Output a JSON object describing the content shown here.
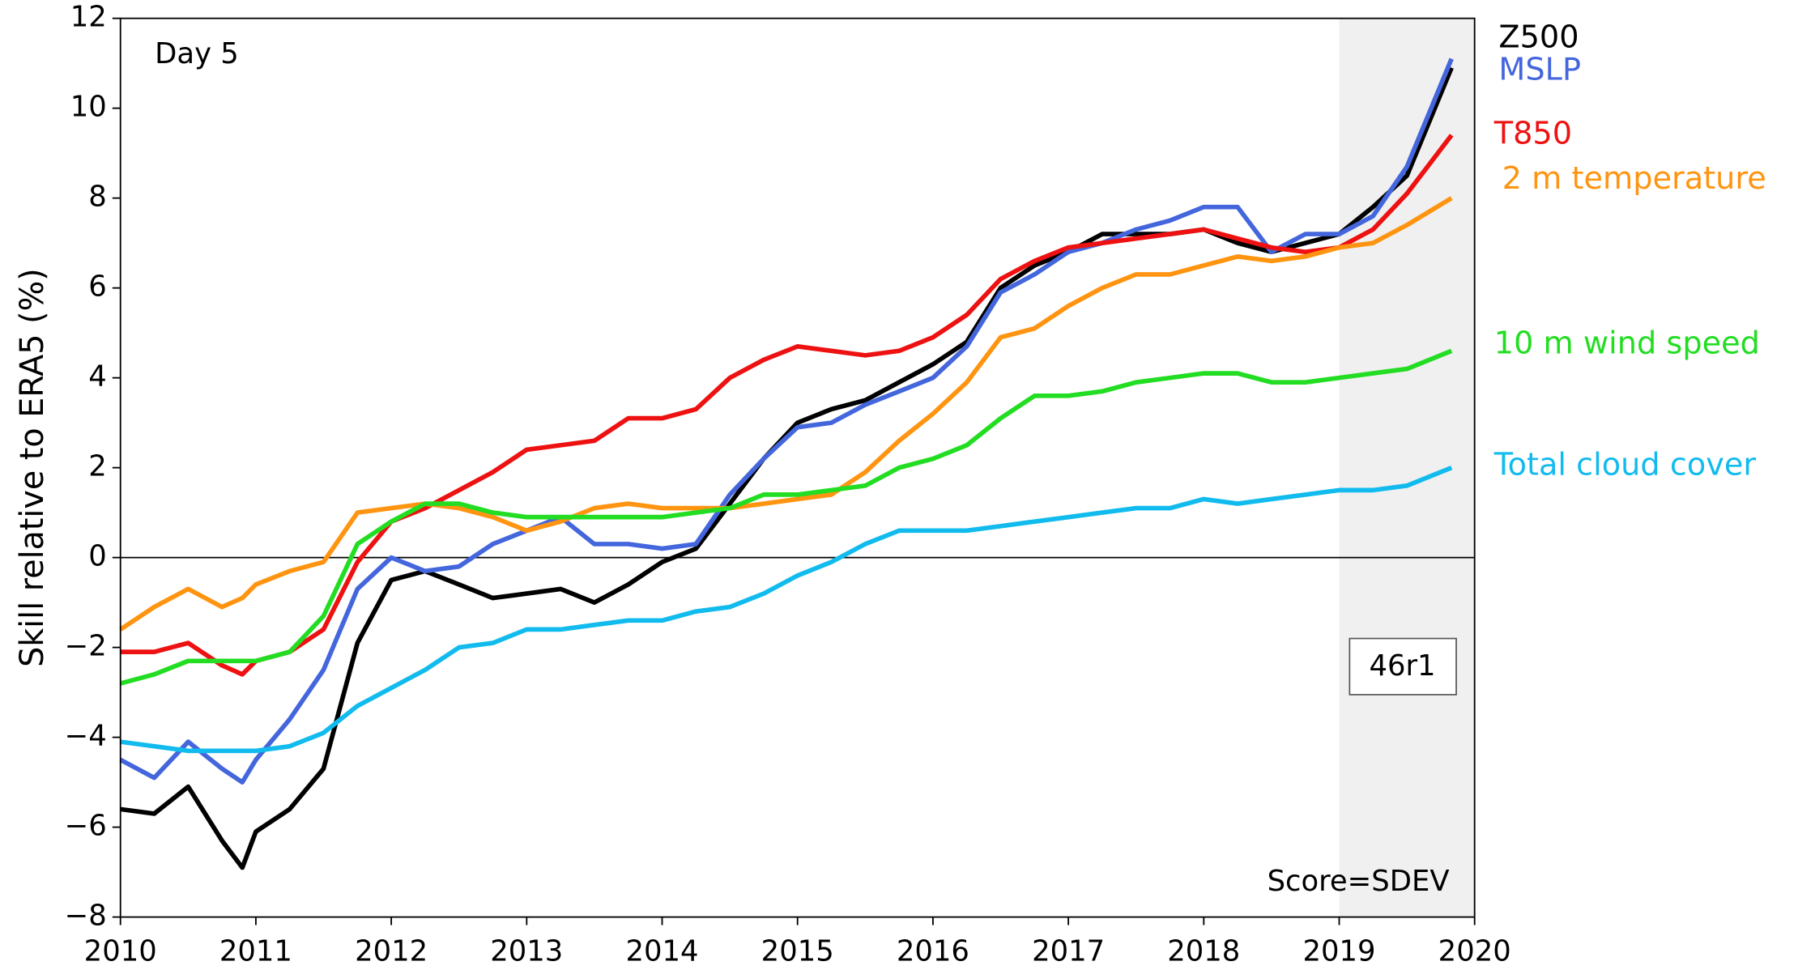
{
  "chart_data": {
    "type": "line",
    "ylabel": "Skill relative to ERA5 (%)",
    "annotations": [
      "Day 5",
      "Score=SDEV",
      "46r1"
    ],
    "xlim": [
      2010,
      2020
    ],
    "ylim": [
      -8,
      12
    ],
    "xticks": [
      2010,
      2011,
      2012,
      2013,
      2014,
      2015,
      2016,
      2017,
      2018,
      2019,
      2020
    ],
    "yticks": [
      {
        "value": -8,
        "label": "−8"
      },
      {
        "value": -6,
        "label": "−6"
      },
      {
        "value": -4,
        "label": "−4"
      },
      {
        "value": -2,
        "label": "−2"
      },
      0,
      2,
      4,
      6,
      8,
      10,
      12
    ],
    "hline": 0,
    "shade": [
      2019,
      2020
    ],
    "x": [
      2010,
      2010.25,
      2010.5,
      2010.75,
      2010.9,
      2011,
      2011.25,
      2011.5,
      2011.75,
      2012,
      2012.25,
      2012.5,
      2012.75,
      2013,
      2013.25,
      2013.5,
      2013.75,
      2014,
      2014.25,
      2014.5,
      2014.75,
      2015,
      2015.25,
      2015.5,
      2015.75,
      2016,
      2016.25,
      2016.5,
      2016.75,
      2017,
      2017.25,
      2017.5,
      2017.75,
      2018,
      2018.25,
      2018.5,
      2018.75,
      2019,
      2019.25,
      2019.5,
      2019.83
    ],
    "series": [
      {
        "name": "Z500",
        "color": "#000000",
        "values": [
          -5.6,
          -5.7,
          -5.1,
          -6.3,
          -6.9,
          -6.1,
          -5.6,
          -4.7,
          -1.9,
          -0.5,
          -0.3,
          -0.6,
          -0.9,
          -0.8,
          -0.7,
          -1.0,
          -0.6,
          -0.1,
          0.2,
          1.2,
          2.2,
          3.0,
          3.3,
          3.5,
          3.9,
          4.3,
          4.8,
          6.0,
          6.5,
          6.8,
          7.2,
          7.2,
          7.2,
          7.3,
          7.0,
          6.8,
          7.0,
          7.2,
          7.8,
          8.5,
          10.9
        ]
      },
      {
        "name": "MSLP",
        "color": "#4466dd",
        "values": [
          -4.5,
          -4.9,
          -4.1,
          -4.7,
          -5.0,
          -4.5,
          -3.6,
          -2.5,
          -0.7,
          0.0,
          -0.3,
          -0.2,
          0.3,
          0.6,
          0.9,
          0.3,
          0.3,
          0.2,
          0.3,
          1.4,
          2.2,
          2.9,
          3.0,
          3.4,
          3.7,
          4.0,
          4.7,
          5.9,
          6.3,
          6.8,
          7.0,
          7.3,
          7.5,
          7.8,
          7.8,
          6.8,
          7.2,
          7.2,
          7.6,
          8.7,
          11.1
        ]
      },
      {
        "name": "T850",
        "color": "#ee1111",
        "values": [
          -2.1,
          -2.1,
          -1.9,
          -2.4,
          -2.6,
          -2.3,
          -2.1,
          -1.6,
          -0.1,
          0.8,
          1.1,
          1.5,
          1.9,
          2.4,
          2.5,
          2.6,
          3.1,
          3.1,
          3.3,
          4.0,
          4.4,
          4.7,
          4.6,
          4.5,
          4.6,
          4.9,
          5.4,
          6.2,
          6.6,
          6.9,
          7.0,
          7.1,
          7.2,
          7.3,
          7.1,
          6.9,
          6.8,
          6.9,
          7.3,
          8.1,
          9.4
        ]
      },
      {
        "name": "2 m temperature",
        "color": "#ff9411",
        "values": [
          -1.6,
          -1.1,
          -0.7,
          -1.1,
          -0.9,
          -0.6,
          -0.3,
          -0.1,
          1.0,
          1.1,
          1.2,
          1.1,
          0.9,
          0.6,
          0.8,
          1.1,
          1.2,
          1.1,
          1.1,
          1.1,
          1.2,
          1.3,
          1.4,
          1.9,
          2.6,
          3.2,
          3.9,
          4.9,
          5.1,
          5.6,
          6.0,
          6.3,
          6.3,
          6.5,
          6.7,
          6.6,
          6.7,
          6.9,
          7.0,
          7.4,
          8.0
        ]
      },
      {
        "name": "10 m wind speed",
        "color": "#22dd22",
        "values": [
          -2.8,
          -2.6,
          -2.3,
          -2.3,
          -2.3,
          -2.3,
          -2.1,
          -1.3,
          0.3,
          0.8,
          1.2,
          1.2,
          1.0,
          0.9,
          0.9,
          0.9,
          0.9,
          0.9,
          1.0,
          1.1,
          1.4,
          1.4,
          1.5,
          1.6,
          2.0,
          2.2,
          2.5,
          3.1,
          3.6,
          3.6,
          3.7,
          3.9,
          4.0,
          4.1,
          4.1,
          3.9,
          3.9,
          4.0,
          4.1,
          4.2,
          4.6
        ]
      },
      {
        "name": "Total cloud cover",
        "color": "#11bbee",
        "values": [
          -4.1,
          -4.2,
          -4.3,
          -4.3,
          -4.3,
          -4.3,
          -4.2,
          -3.9,
          -3.3,
          -2.9,
          -2.5,
          -2.0,
          -1.9,
          -1.6,
          -1.6,
          -1.5,
          -1.4,
          -1.4,
          -1.2,
          -1.1,
          -0.8,
          -0.4,
          -0.1,
          0.3,
          0.6,
          0.6,
          0.6,
          0.7,
          0.8,
          0.9,
          1.0,
          1.1,
          1.1,
          1.3,
          1.2,
          1.3,
          1.4,
          1.5,
          1.5,
          1.6,
          2.0
        ]
      }
    ]
  }
}
